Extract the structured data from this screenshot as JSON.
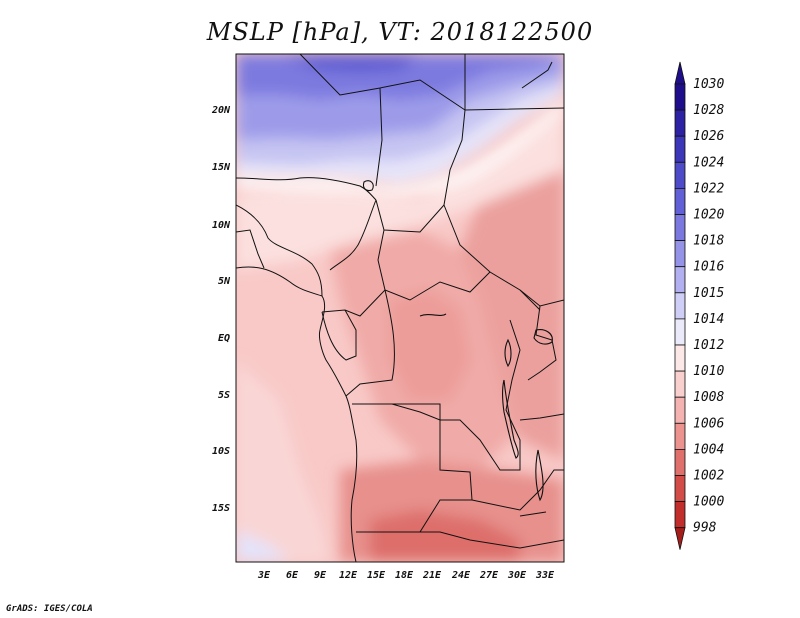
{
  "figure": {
    "title": "MSLP [hPa], VT: 2018122500",
    "credit": "GrADS: IGES/COLA"
  },
  "axes": {
    "lat_labels": [
      "20N",
      "15N",
      "10N",
      "5N",
      "EQ",
      "5S",
      "10S",
      "15S"
    ],
    "lon_labels": [
      "3E",
      "6E",
      "9E",
      "12E",
      "15E",
      "18E",
      "21E",
      "24E",
      "27E",
      "30E",
      "33E"
    ]
  },
  "colorbar": {
    "levels": [
      "1030",
      "1028",
      "1026",
      "1024",
      "1022",
      "1020",
      "1018",
      "1016",
      "1015",
      "1014",
      "1012",
      "1010",
      "1008",
      "1006",
      "1004",
      "1002",
      "1000",
      "998"
    ],
    "colors": [
      "#1f0e8c",
      "#2e22a4",
      "#3c36b8",
      "#4d4bc8",
      "#6260d6",
      "#7b78e0",
      "#9593e8",
      "#b2b0f0",
      "#cfcef6",
      "#ebeafb",
      "#fde8e8",
      "#fad0cf",
      "#f4b3b1",
      "#ec9390",
      "#e0706c",
      "#d34c48",
      "#c22e2b",
      "#a61e1c"
    ]
  },
  "map_fields": [
    {
      "name": "north-high",
      "color": "#7a79e0"
    },
    {
      "name": "north-mid",
      "color": "#9c9bea"
    },
    {
      "name": "north-light",
      "color": "#c5c4f3"
    },
    {
      "name": "north-pale",
      "color": "#e6e5fa"
    },
    {
      "name": "transition-white",
      "color": "#ffffff"
    },
    {
      "name": "light-pink",
      "color": "#fbe0df"
    },
    {
      "name": "west-pink",
      "color": "#f8c9c7"
    },
    {
      "name": "central-low",
      "color": "#f0aaa7"
    },
    {
      "name": "east-low",
      "color": "#e99491"
    },
    {
      "name": "south-low",
      "color": "#e2807c"
    },
    {
      "name": "south-deep",
      "color": "#d9625e"
    },
    {
      "name": "southwest-pale",
      "color": "#e4e3fa"
    }
  ]
}
